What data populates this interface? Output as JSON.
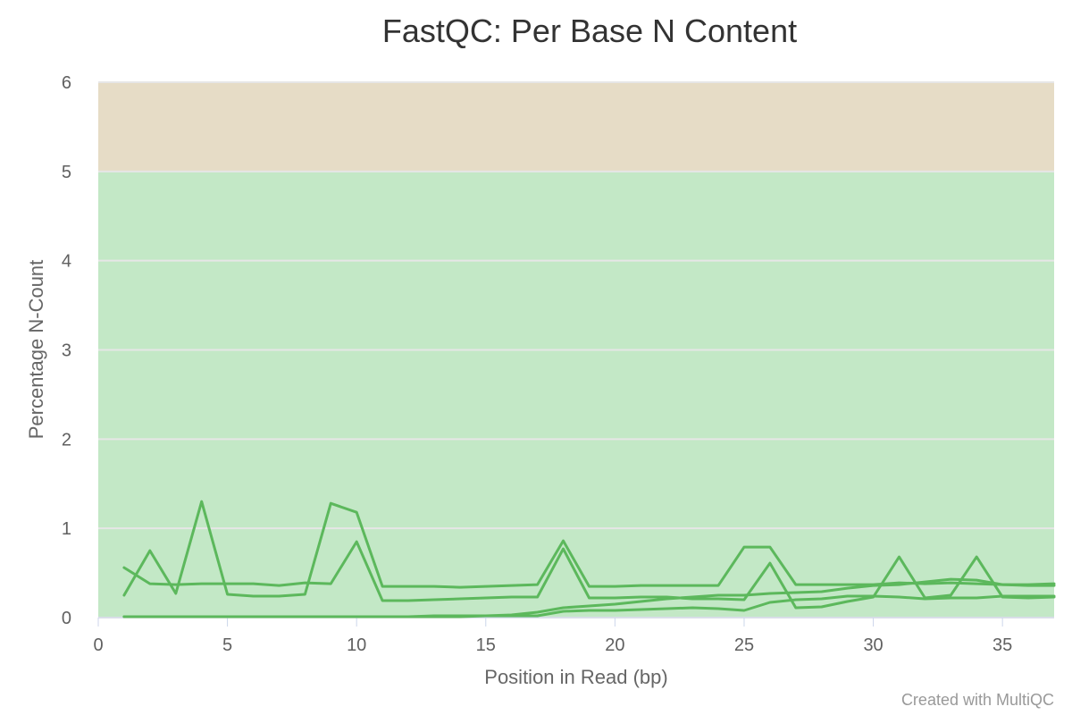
{
  "chart_data": {
    "type": "line",
    "title": "FastQC: Per Base N Content",
    "xlabel": "Position in Read (bp)",
    "ylabel": "Percentage N-Count",
    "xlim": [
      0,
      37
    ],
    "ylim": [
      0,
      6
    ],
    "xticks": [
      0,
      5,
      10,
      15,
      20,
      25,
      30,
      35
    ],
    "yticks": [
      0,
      1,
      2,
      3,
      4,
      5,
      6
    ],
    "grid": true,
    "bands": [
      {
        "from": 0,
        "to": 5,
        "color": "#c3e8c6"
      },
      {
        "from": 5,
        "to": 6,
        "color": "#e6dcc6"
      }
    ],
    "line_color": "#5cb85c",
    "x": [
      1,
      2,
      3,
      4,
      5,
      6,
      7,
      8,
      9,
      10,
      11,
      12,
      13,
      14,
      15,
      16,
      17,
      18,
      19,
      20,
      21,
      22,
      23,
      24,
      25,
      26,
      27,
      28,
      29,
      30,
      31,
      32,
      33,
      34,
      35,
      36,
      37
    ],
    "series": [
      {
        "values": [
          0.25,
          0.75,
          0.27,
          1.3,
          0.26,
          0.24,
          0.24,
          0.26,
          1.28,
          1.18,
          0.35,
          0.35,
          0.35,
          0.34,
          0.35,
          0.36,
          0.37,
          0.86,
          0.35,
          0.35,
          0.36,
          0.36,
          0.36,
          0.36,
          0.79,
          0.79,
          0.37,
          0.37,
          0.37,
          0.37,
          0.39,
          0.38,
          0.39,
          0.38,
          0.37,
          0.37,
          0.38
        ]
      },
      {
        "values": [
          0.56,
          0.38,
          0.37,
          0.38,
          0.38,
          0.38,
          0.36,
          0.39,
          0.38,
          0.85,
          0.19,
          0.19,
          0.2,
          0.21,
          0.22,
          0.23,
          0.23,
          0.77,
          0.22,
          0.22,
          0.23,
          0.23,
          0.21,
          0.21,
          0.2,
          0.61,
          0.11,
          0.12,
          0.18,
          0.23,
          0.68,
          0.22,
          0.25,
          0.68,
          0.23,
          0.22,
          0.23
        ]
      },
      {
        "values": [
          0.01,
          0.01,
          0.01,
          0.01,
          0.01,
          0.01,
          0.01,
          0.01,
          0.01,
          0.01,
          0.01,
          0.01,
          0.02,
          0.02,
          0.02,
          0.02,
          0.02,
          0.07,
          0.08,
          0.08,
          0.09,
          0.1,
          0.11,
          0.1,
          0.08,
          0.17,
          0.2,
          0.21,
          0.24,
          0.24,
          0.23,
          0.21,
          0.22,
          0.22,
          0.24,
          0.24,
          0.24
        ]
      },
      {
        "values": [
          0.01,
          0.01,
          0.01,
          0.01,
          0.01,
          0.01,
          0.01,
          0.01,
          0.01,
          0.01,
          0.01,
          0.01,
          0.01,
          0.01,
          0.02,
          0.03,
          0.06,
          0.11,
          0.13,
          0.15,
          0.18,
          0.21,
          0.23,
          0.25,
          0.25,
          0.27,
          0.28,
          0.29,
          0.33,
          0.36,
          0.37,
          0.4,
          0.43,
          0.42,
          0.37,
          0.36,
          0.36
        ]
      }
    ]
  },
  "credit": "Created with MultiQC"
}
